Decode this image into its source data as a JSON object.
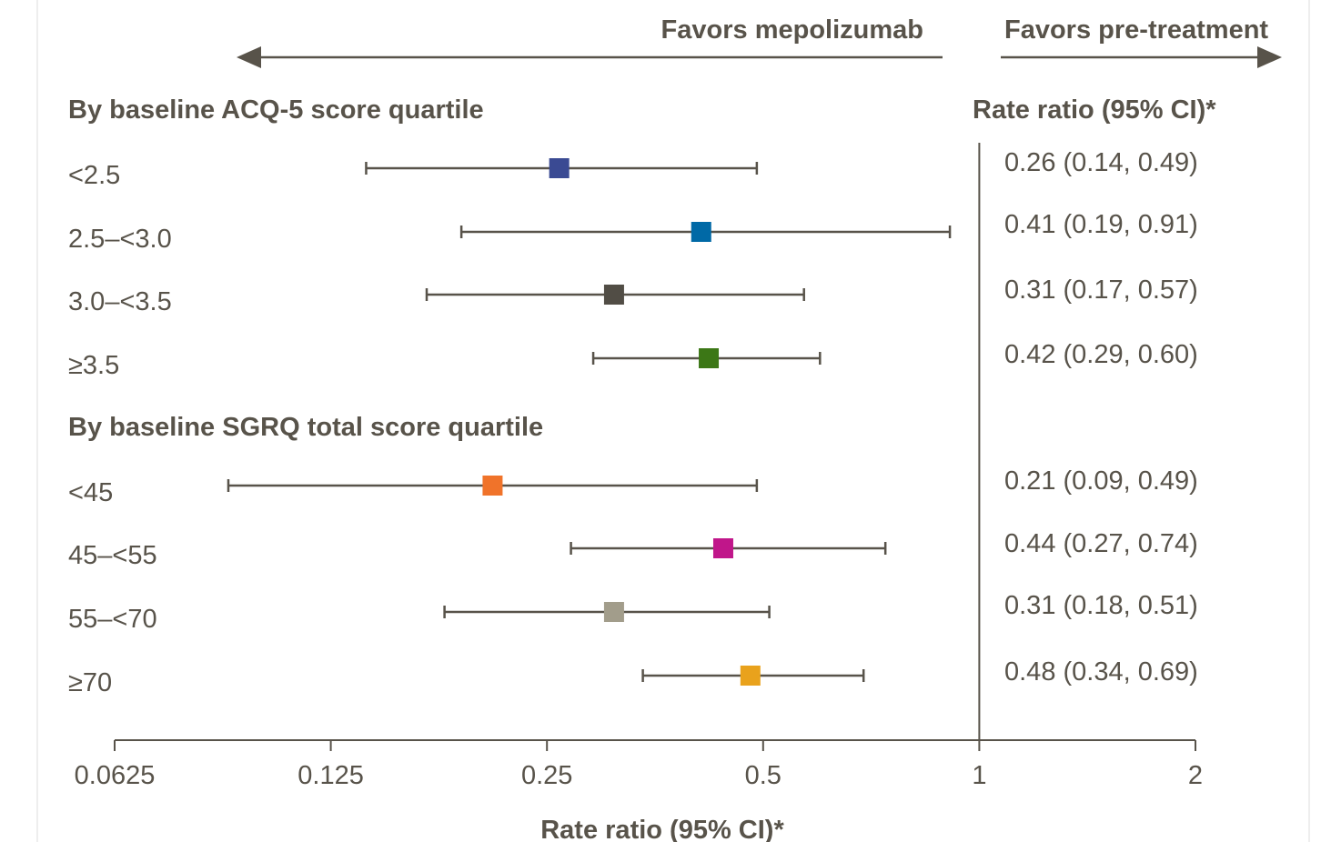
{
  "chart_data": {
    "type": "forest",
    "scale": "log2",
    "xlabel": "Rate ratio (95% CI)*",
    "x_ticks": [
      0.0625,
      0.125,
      0.25,
      0.5,
      1,
      2
    ],
    "x_tick_labels": [
      "0.0625",
      "0.125",
      "0.25",
      "0.5",
      "1",
      "2"
    ],
    "xlim": [
      0.0625,
      2
    ],
    "reference_line": 1,
    "direction_labels": {
      "left": "Favors mepolizumab",
      "right": "Favors pre-treatment"
    },
    "ci_column_header": "Rate ratio (95% CI)*",
    "groups": [
      {
        "title": "By baseline ACQ-5 score quartile",
        "rows": [
          {
            "label": "<2.5",
            "estimate": 0.26,
            "lower": 0.14,
            "upper": 0.49,
            "ci_text": "0.26 (0.14, 0.49)",
            "color": "#3a4a93"
          },
          {
            "label": "2.5–<3.0",
            "estimate": 0.41,
            "lower": 0.19,
            "upper": 0.91,
            "ci_text": "0.41 (0.19, 0.91)",
            "color": "#0069a6"
          },
          {
            "label": "3.0–<3.5",
            "estimate": 0.31,
            "lower": 0.17,
            "upper": 0.57,
            "ci_text": "0.31 (0.17, 0.57)",
            "color": "#514d45"
          },
          {
            "label": "≥3.5",
            "estimate": 0.42,
            "lower": 0.29,
            "upper": 0.6,
            "ci_text": "0.42 (0.29, 0.60)",
            "color": "#3c7716"
          }
        ]
      },
      {
        "title": "By baseline SGRQ total score quartile",
        "rows": [
          {
            "label": "<45",
            "estimate": 0.21,
            "lower": 0.09,
            "upper": 0.49,
            "ci_text": "0.21 (0.09, 0.49)",
            "color": "#f0732a"
          },
          {
            "label": "45–<55",
            "estimate": 0.44,
            "lower": 0.27,
            "upper": 0.74,
            "ci_text": "0.44 (0.27, 0.74)",
            "color": "#c0168a"
          },
          {
            "label": "55–<70",
            "estimate": 0.31,
            "lower": 0.18,
            "upper": 0.51,
            "ci_text": "0.31 (0.18, 0.51)",
            "color": "#a29d8b"
          },
          {
            "label": "≥70",
            "estimate": 0.48,
            "lower": 0.34,
            "upper": 0.69,
            "ci_text": "0.48 (0.34, 0.69)",
            "color": "#e9a21c"
          }
        ]
      }
    ],
    "line_color": "#58534a"
  }
}
